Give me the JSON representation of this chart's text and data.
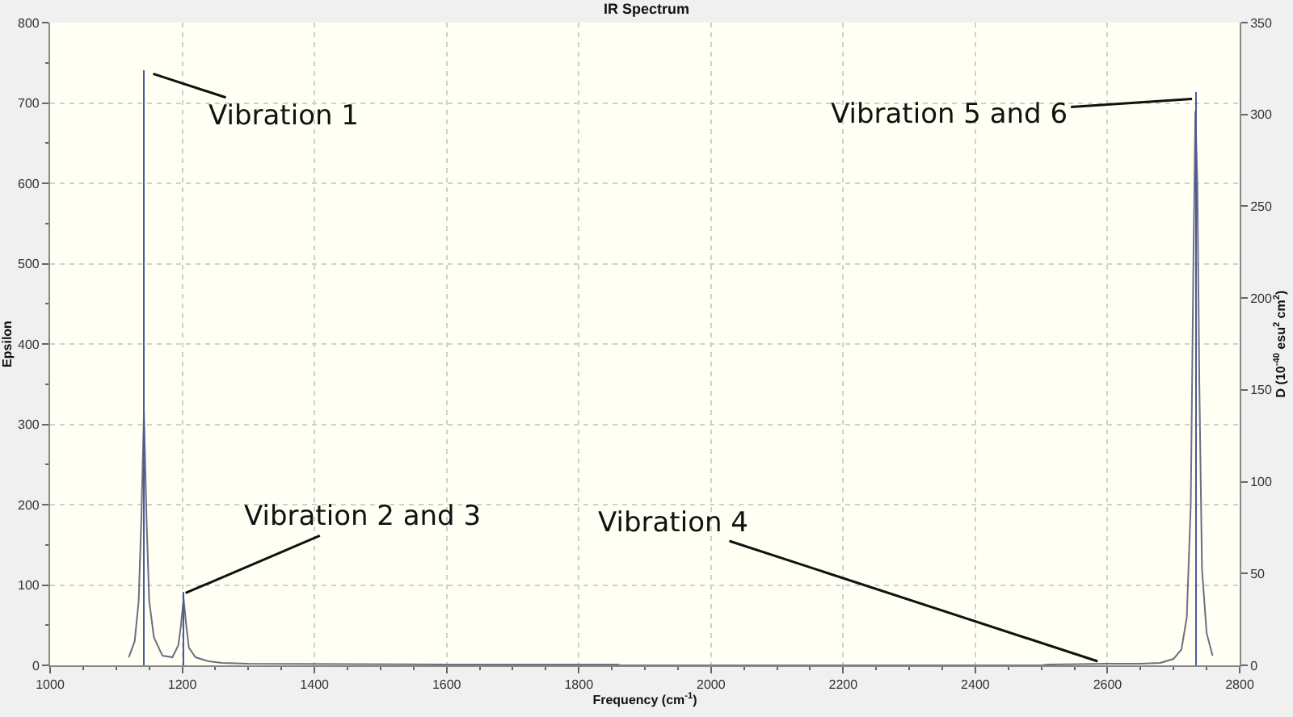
{
  "chart_data": {
    "type": "line",
    "title": "IR Spectrum",
    "xlabel": "Frequency (cm$^{-1}$)",
    "ylabel": "Epsilon",
    "y2label": "D (10$^{-40}$ esu$^{2}$ cm$^{2}$)",
    "series": [
      {
        "color": "#6e6e80",
        "x": [
          1119,
          1128,
          1134,
          1138,
          1142,
          1146,
          1150,
          1157,
          1170,
          1185,
          1194,
          1198,
          1202,
          1206,
          1210,
          1220,
          1240,
          1260,
          1300,
          1600,
          1860,
          1862,
          2500,
          2510,
          2600,
          2650,
          2680,
          2700,
          2712,
          2720,
          2726,
          2730,
          2733,
          2736,
          2739,
          2743,
          2750,
          2759
        ],
        "values": [
          10,
          30,
          80,
          180,
          315,
          180,
          80,
          35,
          12,
          10,
          25,
          50,
          83,
          50,
          22,
          10,
          5,
          3,
          2,
          1,
          1,
          0,
          0,
          1,
          2,
          2,
          3,
          8,
          20,
          60,
          200,
          500,
          690,
          600,
          350,
          120,
          40,
          12
        ]
      },
      {
        "type": "bar",
        "axis": "y2",
        "color": "#4a5a9a",
        "x": [
          1142,
          1202,
          2734
        ],
        "values": [
          324,
          40,
          312
        ]
      }
    ],
    "xlim": [
      1000,
      2800
    ],
    "xticks": [
      1000,
      1200,
      1400,
      1600,
      1800,
      2000,
      2200,
      2400,
      2600,
      2800
    ],
    "ylim": [
      0,
      800
    ],
    "yticks": [
      0,
      100,
      200,
      300,
      400,
      500,
      600,
      700,
      800
    ],
    "y2lim": [
      0,
      350
    ],
    "y2ticks": [
      0,
      50,
      100,
      150,
      200,
      250,
      300,
      350
    ],
    "grid": true,
    "marker": "none",
    "line_style": "solid",
    "annotations": [
      {
        "text": "Vibration 1",
        "x": 1142,
        "y": 740
      },
      {
        "text": "Vibration 2 and 3",
        "x": 1205,
        "y": 90
      },
      {
        "text": "Vibration 4",
        "x": 2585,
        "y": 5
      },
      {
        "text": "Vibration 5 and 6",
        "x": 2728,
        "y": 705
      }
    ]
  }
}
